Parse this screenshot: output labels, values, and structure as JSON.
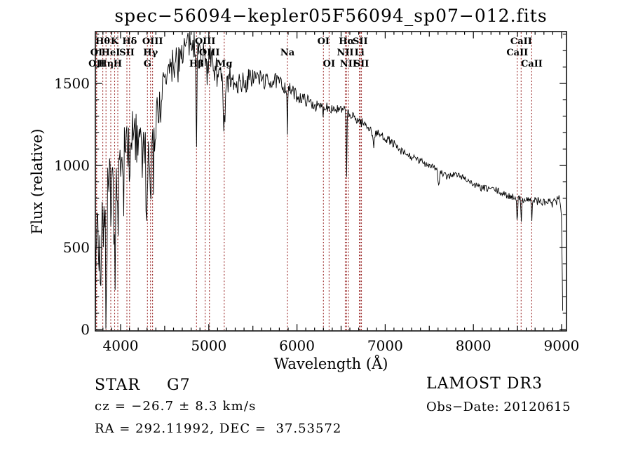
{
  "title": "spec−56094−kepler05F56094_sp07−012.fits",
  "colors": {
    "background": "#ffffff",
    "spectrum": "#000000",
    "frame": "#000000",
    "line_marker": "#9b2a2a",
    "text": "#000000"
  },
  "annotations": {
    "object_class": "STAR",
    "object_subclass": "G7",
    "cz": "cz = −26.7 ± 8.3 km/s",
    "radec": "RA = 292.11992, DEC =  37.53572",
    "survey": "LAMOST DR3",
    "obs_date": "Obs−Date: 20120615"
  },
  "chart_data": {
    "type": "line",
    "title": "spec−56094−kepler05F56094_sp07−012.fits",
    "xlabel": "Wavelength (Å)",
    "ylabel": "Flux (relative)",
    "xlim": [
      3714,
      9056
    ],
    "ylim": [
      0,
      1816
    ],
    "x_major_ticks": [
      4000,
      5000,
      6000,
      7000,
      8000,
      9000
    ],
    "x_medium_step": 500,
    "x_minor_step": 100,
    "y_major_ticks": [
      0,
      500,
      1000,
      1500
    ],
    "y_minor_step": 100,
    "grid": false,
    "legend": "none",
    "series": [
      {
        "name": "flux",
        "anchors": [
          [
            3714,
            60
          ],
          [
            3720,
            350
          ],
          [
            3730,
            620
          ],
          [
            3745,
            540
          ],
          [
            3760,
            430
          ],
          [
            3775,
            470
          ],
          [
            3790,
            540
          ],
          [
            3805,
            600
          ],
          [
            3820,
            640
          ],
          [
            3840,
            700
          ],
          [
            3860,
            820
          ],
          [
            3880,
            830
          ],
          [
            3900,
            860
          ],
          [
            3920,
            830
          ],
          [
            3940,
            760
          ],
          [
            3960,
            820
          ],
          [
            3980,
            950
          ],
          [
            4000,
            1030
          ],
          [
            4030,
            1090
          ],
          [
            4060,
            1130
          ],
          [
            4090,
            1140
          ],
          [
            4120,
            1160
          ],
          [
            4150,
            1180
          ],
          [
            4180,
            1160
          ],
          [
            4210,
            1140
          ],
          [
            4240,
            1110
          ],
          [
            4270,
            1080
          ],
          [
            4300,
            1060
          ],
          [
            4330,
            1060
          ],
          [
            4360,
            1100
          ],
          [
            4390,
            1220
          ],
          [
            4420,
            1320
          ],
          [
            4450,
            1420
          ],
          [
            4500,
            1510
          ],
          [
            4550,
            1570
          ],
          [
            4600,
            1620
          ],
          [
            4650,
            1660
          ],
          [
            4700,
            1700
          ],
          [
            4750,
            1730
          ],
          [
            4800,
            1745
          ],
          [
            4850,
            1725
          ],
          [
            4900,
            1690
          ],
          [
            4950,
            1665
          ],
          [
            5000,
            1645
          ],
          [
            5050,
            1615
          ],
          [
            5100,
            1565
          ],
          [
            5150,
            1500
          ],
          [
            5200,
            1480
          ],
          [
            5250,
            1545
          ],
          [
            5300,
            1525
          ],
          [
            5350,
            1505
          ],
          [
            5400,
            1495
          ],
          [
            5450,
            1525
          ],
          [
            5500,
            1545
          ],
          [
            5550,
            1535
          ],
          [
            5600,
            1525
          ],
          [
            5650,
            1510
          ],
          [
            5700,
            1515
          ],
          [
            5750,
            1515
          ],
          [
            5800,
            1505
          ],
          [
            5850,
            1485
          ],
          [
            5900,
            1470
          ],
          [
            5950,
            1450
          ],
          [
            6000,
            1425
          ],
          [
            6050,
            1410
          ],
          [
            6100,
            1400
          ],
          [
            6150,
            1385
          ],
          [
            6200,
            1370
          ],
          [
            6250,
            1350
          ],
          [
            6300,
            1365
          ],
          [
            6350,
            1360
          ],
          [
            6400,
            1350
          ],
          [
            6450,
            1340
          ],
          [
            6500,
            1335
          ],
          [
            6550,
            1330
          ],
          [
            6600,
            1305
          ],
          [
            6650,
            1290
          ],
          [
            6700,
            1275
          ],
          [
            6750,
            1255
          ],
          [
            6800,
            1240
          ],
          [
            6850,
            1215
          ],
          [
            6900,
            1195
          ],
          [
            6950,
            1185
          ],
          [
            7000,
            1170
          ],
          [
            7050,
            1150
          ],
          [
            7100,
            1130
          ],
          [
            7150,
            1095
          ],
          [
            7200,
            1080
          ],
          [
            7250,
            1065
          ],
          [
            7300,
            1050
          ],
          [
            7350,
            1035
          ],
          [
            7400,
            1025
          ],
          [
            7450,
            1015
          ],
          [
            7500,
            1005
          ],
          [
            7550,
            995
          ],
          [
            7600,
            980
          ],
          [
            7650,
            945
          ],
          [
            7700,
            930
          ],
          [
            7750,
            945
          ],
          [
            7800,
            945
          ],
          [
            7850,
            935
          ],
          [
            7900,
            925
          ],
          [
            7950,
            905
          ],
          [
            8000,
            885
          ],
          [
            8050,
            870
          ],
          [
            8100,
            862
          ],
          [
            8150,
            858
          ],
          [
            8200,
            860
          ],
          [
            8250,
            850
          ],
          [
            8300,
            838
          ],
          [
            8350,
            822
          ],
          [
            8400,
            815
          ],
          [
            8450,
            808
          ],
          [
            8500,
            800
          ],
          [
            8550,
            795
          ],
          [
            8600,
            795
          ],
          [
            8650,
            792
          ],
          [
            8700,
            788
          ],
          [
            8750,
            780
          ],
          [
            8800,
            772
          ],
          [
            8850,
            778
          ],
          [
            8900,
            765
          ],
          [
            8950,
            782
          ],
          [
            8980,
            812
          ],
          [
            9000,
            700
          ],
          [
            9006,
            420
          ],
          [
            9012,
            120
          ],
          [
            9017,
            25
          ]
        ],
        "noise_envelope": [
          [
            3714,
            260
          ],
          [
            3800,
            250
          ],
          [
            3900,
            230
          ],
          [
            4000,
            185
          ],
          [
            4100,
            170
          ],
          [
            4200,
            160
          ],
          [
            4300,
            160
          ],
          [
            4400,
            135
          ],
          [
            4500,
            115
          ],
          [
            4700,
            100
          ],
          [
            4900,
            92
          ],
          [
            5100,
            95
          ],
          [
            5300,
            88
          ],
          [
            5500,
            62
          ],
          [
            5700,
            50
          ],
          [
            5900,
            42
          ],
          [
            6100,
            38
          ],
          [
            6400,
            34
          ],
          [
            6700,
            30
          ],
          [
            7000,
            26
          ],
          [
            7400,
            23
          ],
          [
            7800,
            20
          ],
          [
            8200,
            21
          ],
          [
            8600,
            22
          ],
          [
            8900,
            30
          ],
          [
            9017,
            30
          ]
        ],
        "absorption_dips": [
          [
            3835,
            10,
            200
          ],
          [
            3889,
            10,
            180
          ],
          [
            3933,
            16,
            420
          ],
          [
            3968,
            13,
            300
          ],
          [
            4102,
            11,
            240
          ],
          [
            4305,
            15,
            190
          ],
          [
            4340,
            10,
            290
          ],
          [
            4861,
            11,
            620
          ],
          [
            5175,
            26,
            270
          ],
          [
            5892,
            10,
            270
          ],
          [
            6300,
            8,
            60
          ],
          [
            6563,
            9,
            360
          ],
          [
            6867,
            20,
            90
          ],
          [
            7605,
            22,
            95
          ],
          [
            8498,
            9,
            150
          ],
          [
            8542,
            9,
            170
          ],
          [
            8662,
            9,
            150
          ]
        ]
      }
    ],
    "spectral_lines": [
      {
        "name": "Hθ",
        "wavelength": 3798,
        "row": 1
      },
      {
        "name": "K",
        "wavelength": 3933,
        "row": 1
      },
      {
        "name": "Hδ",
        "wavelength": 4102,
        "row": 1
      },
      {
        "name": "OIII",
        "wavelength": 4363,
        "row": 1
      },
      {
        "name": "OIII",
        "wavelength": 4959,
        "row": 1
      },
      {
        "name": "OI",
        "wavelength": 6300,
        "row": 1
      },
      {
        "name": "Hα",
        "wavelength": 6563,
        "row": 1
      },
      {
        "name": "SII",
        "wavelength": 6717,
        "row": 1
      },
      {
        "name": "CaII",
        "wavelength": 8542,
        "row": 1
      },
      {
        "name": "OI",
        "wavelength": 3726,
        "row": 2
      },
      {
        "name": "HeI",
        "wavelength": 3889,
        "row": 2
      },
      {
        "name": "SII",
        "wavelength": 4072,
        "row": 2
      },
      {
        "name": "Hγ",
        "wavelength": 4340,
        "row": 2
      },
      {
        "name": "OIII",
        "wavelength": 5007,
        "row": 2
      },
      {
        "name": "Na",
        "wavelength": 5892,
        "row": 2
      },
      {
        "name": "NII",
        "wavelength": 6548,
        "row": 2
      },
      {
        "name": "Li",
        "wavelength": 6708,
        "row": 2
      },
      {
        "name": "CaII",
        "wavelength": 8498,
        "row": 2
      },
      {
        "name": "OII",
        "wavelength": 3729,
        "row": 3
      },
      {
        "name": "Hη",
        "wavelength": 3835,
        "row": 3
      },
      {
        "name": "H",
        "wavelength": 3968,
        "row": 3
      },
      {
        "name": "G",
        "wavelength": 4305,
        "row": 3
      },
      {
        "name": "Hβ",
        "wavelength": 4861,
        "row": 3
      },
      {
        "name": "Mg",
        "wavelength": 5175,
        "row": 3
      },
      {
        "name": "OI",
        "wavelength": 6364,
        "row": 3
      },
      {
        "name": "NII",
        "wavelength": 6583,
        "row": 3
      },
      {
        "name": "SII",
        "wavelength": 6731,
        "row": 3
      },
      {
        "name": "CaII",
        "wavelength": 8662,
        "row": 3
      }
    ]
  }
}
